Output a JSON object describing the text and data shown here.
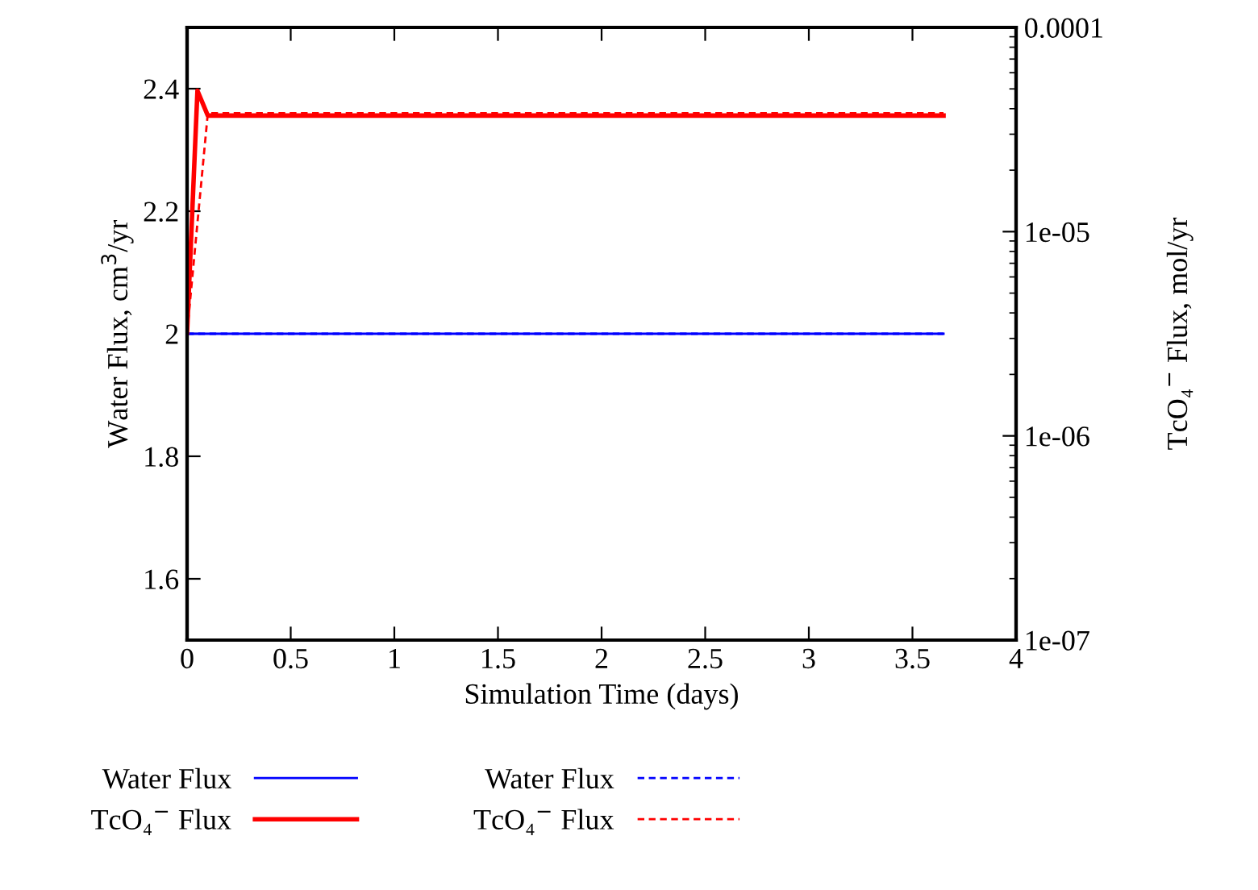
{
  "chart_data": {
    "type": "line",
    "xlabel": "Simulation Time (days)",
    "ylabel": "Water Flux, cm$^{3}$/yr",
    "y2label": "TcO₄$^{−}$ Flux, mol/yr",
    "xlim": [
      0,
      4
    ],
    "xticks": [
      0,
      0.5,
      1,
      1.5,
      2,
      2.5,
      3,
      3.5,
      4
    ],
    "ylim": [
      1.5,
      2.5
    ],
    "yticks": [
      1.6,
      1.8,
      2,
      2.2,
      2.4
    ],
    "y2lim": [
      1e-07,
      0.0001
    ],
    "y2ticks": [
      {
        "value": 1e-07,
        "label": "1e-07"
      },
      {
        "value": 1e-06,
        "label": "1e-06"
      },
      {
        "value": 1e-05,
        "label": "1e-05"
      },
      {
        "value": 0.0001,
        "label": "0.0001"
      }
    ],
    "log": "y2",
    "grid": false,
    "legend": "bottom",
    "marker": "none",
    "series": [
      {
        "name": "Water Flux",
        "color": "#0000ff",
        "x": [
          0,
          3.65
        ],
        "values": [
          2,
          2
        ],
        "line_style": "solid"
      },
      {
        "name": "TcO₄$^{−}$ Flux",
        "color": "#ff0000",
        "x": [
          0,
          0.05,
          0.1,
          3.65
        ],
        "values": [
          3.2e-06,
          4.9e-05,
          3.7e-05,
          3.7e-05
        ],
        "axis": "y2",
        "line_style": "solid"
      },
      {
        "name": "Water Flux",
        "color": "#0000ff",
        "x": [
          0,
          3.65
        ],
        "values": [
          2,
          2
        ],
        "line_style": "dashed"
      },
      {
        "name": "TcO₄$^{−}$ Flux",
        "color": "#ff0000",
        "x": [
          0,
          0.1,
          3.65
        ],
        "values": [
          3.2e-06,
          3.8e-05,
          3.8e-05
        ],
        "axis": "y2",
        "line_style": "dashed"
      }
    ]
  }
}
